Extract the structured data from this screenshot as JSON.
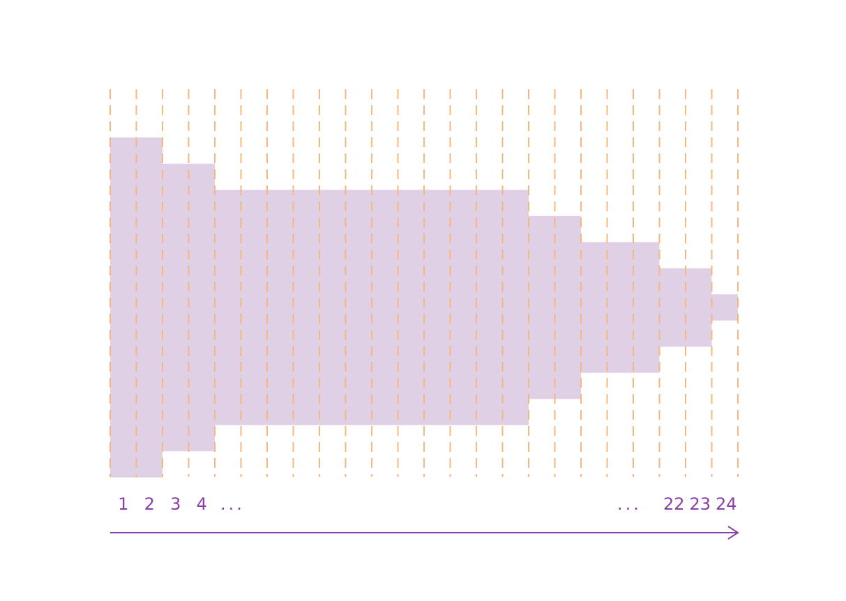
{
  "colors": {
    "fill": "#e0d0e6",
    "gridline": "#f5b77a",
    "text": "#8a3fa8",
    "arrow": "#8a3fa8"
  },
  "chart_data": {
    "type": "area",
    "column_count": 24,
    "labels_left": [
      "1",
      "2",
      "3",
      "4"
    ],
    "labels_right": [
      "22",
      "23",
      "24"
    ],
    "ellipsis_left": "...",
    "ellipsis_right": "...",
    "gridlines": "dashed-vertical",
    "arrow_direction": "right",
    "segments": [
      {
        "from": 1,
        "to": 2,
        "level": 13
      },
      {
        "from": 3,
        "to": 4,
        "level": 11
      },
      {
        "from": 5,
        "to": 16,
        "level": 9
      },
      {
        "from": 17,
        "to": 18,
        "level": 7
      },
      {
        "from": 19,
        "to": 21,
        "level": 5
      },
      {
        "from": 22,
        "to": 23,
        "level": 3
      },
      {
        "from": 24,
        "to": 24,
        "level": 1
      }
    ]
  }
}
